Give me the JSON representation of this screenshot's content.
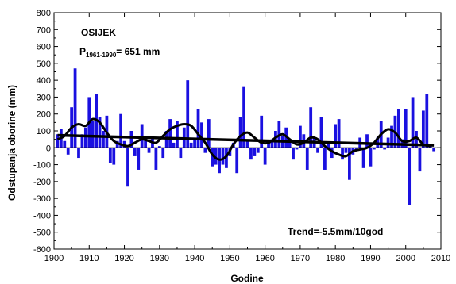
{
  "chart_data": {
    "type": "bar",
    "title": "OSIJEK",
    "mean_annotation": {
      "main": "P",
      "sub": "1961-1990",
      "tail": "= 651 mm"
    },
    "trend_annotation": "Trend=-5.5mm/10god",
    "xlabel": "Godine",
    "ylabel": "Odstupanja oborine (mm)",
    "xlim": [
      1900,
      2010
    ],
    "ylim": [
      -600,
      800
    ],
    "x_ticks": [
      "1900",
      "1910",
      "1920",
      "1930",
      "1940",
      "1950",
      "1960",
      "1970",
      "1980",
      "1990",
      "2000",
      "2010"
    ],
    "y_ticks": [
      "800",
      "700",
      "600",
      "500",
      "400",
      "300",
      "200",
      "100",
      "0",
      "-100",
      "-200",
      "-300",
      "-400",
      "-500",
      "-600"
    ],
    "colors": {
      "bars": "#1a10e0",
      "trend": "#000000",
      "smooth": "#000000"
    },
    "series": [
      {
        "name": "",
        "x": [
          1901,
          1902,
          1903,
          1904,
          1905,
          1906,
          1907,
          1908,
          1909,
          1910,
          1911,
          1912,
          1913,
          1914,
          1915,
          1916,
          1917,
          1918,
          1919,
          1920,
          1921,
          1922,
          1923,
          1924,
          1925,
          1926,
          1927,
          1928,
          1929,
          1930,
          1931,
          1932,
          1933,
          1934,
          1935,
          1936,
          1937,
          1938,
          1939,
          1940,
          1941,
          1942,
          1943,
          1944,
          1945,
          1946,
          1947,
          1948,
          1949,
          1950,
          1951,
          1952,
          1953,
          1954,
          1955,
          1956,
          1957,
          1958,
          1959,
          1960,
          1961,
          1962,
          1963,
          1964,
          1965,
          1966,
          1967,
          1968,
          1969,
          1970,
          1971,
          1972,
          1973,
          1974,
          1975,
          1976,
          1977,
          1978,
          1979,
          1980,
          1981,
          1982,
          1983,
          1984,
          1985,
          1986,
          1987,
          1988,
          1989,
          1990,
          1991,
          1992,
          1993,
          1994,
          1995,
          1996,
          1997,
          1998,
          1999,
          2000,
          2001,
          2002,
          2003,
          2004,
          2005,
          2006,
          2007,
          2008
        ],
        "values": [
          80,
          110,
          40,
          -40,
          240,
          470,
          -60,
          80,
          120,
          300,
          160,
          320,
          180,
          100,
          190,
          -90,
          -100,
          40,
          200,
          40,
          -230,
          100,
          -50,
          -130,
          140,
          60,
          -30,
          70,
          -130,
          10,
          -60,
          100,
          170,
          30,
          160,
          -60,
          120,
          400,
          30,
          50,
          230,
          150,
          -30,
          170,
          -110,
          -100,
          -150,
          -100,
          -120,
          -50,
          30,
          -150,
          180,
          360,
          40,
          -70,
          -50,
          -30,
          190,
          -100,
          30,
          50,
          100,
          160,
          70,
          120,
          30,
          -70,
          -10,
          130,
          80,
          -130,
          240,
          60,
          -30,
          180,
          -130,
          30,
          -60,
          140,
          170,
          -70,
          -30,
          -190,
          -40,
          -10,
          60,
          -120,
          80,
          -110,
          -10,
          60,
          160,
          -10,
          60,
          130,
          190,
          230,
          50,
          230,
          -340,
          300,
          100,
          -140,
          220,
          320,
          20,
          -20
        ]
      }
    ],
    "trend_line": {
      "x": [
        1901,
        2008
      ],
      "y": [
        74,
        15
      ]
    },
    "smoothed": {
      "x": [
        1901,
        1903,
        1905,
        1907,
        1909,
        1911,
        1913,
        1915,
        1917,
        1919,
        1921,
        1923,
        1925,
        1927,
        1929,
        1931,
        1933,
        1935,
        1937,
        1939,
        1941,
        1943,
        1945,
        1947,
        1949,
        1951,
        1953,
        1955,
        1957,
        1959,
        1961,
        1963,
        1965,
        1967,
        1969,
        1971,
        1973,
        1975,
        1977,
        1979,
        1981,
        1983,
        1985,
        1987,
        1989,
        1991,
        1993,
        1995,
        1997,
        1999,
        2001,
        2003,
        2005,
        2007
      ],
      "y": [
        50,
        70,
        120,
        140,
        130,
        170,
        150,
        90,
        40,
        20,
        10,
        30,
        50,
        40,
        30,
        70,
        110,
        130,
        140,
        130,
        80,
        30,
        -40,
        -70,
        -50,
        20,
        70,
        90,
        60,
        30,
        30,
        60,
        80,
        50,
        20,
        30,
        60,
        50,
        10,
        -20,
        -40,
        -50,
        -20,
        -10,
        0,
        30,
        80,
        110,
        90,
        40,
        40,
        60,
        20,
        10
      ]
    },
    "grid": false,
    "legend": "none"
  }
}
